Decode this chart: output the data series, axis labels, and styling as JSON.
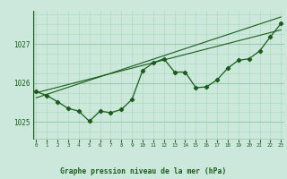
{
  "title": "Graphe pression niveau de la mer (hPa)",
  "bg_color": "#cce8dc",
  "grid_color_major": "#99ccaa",
  "grid_color_minor": "#aaddbb",
  "line_color": "#1a5c1a",
  "x_ticks": [
    0,
    1,
    2,
    3,
    4,
    5,
    6,
    7,
    8,
    9,
    10,
    11,
    12,
    13,
    14,
    15,
    16,
    17,
    18,
    19,
    20,
    21,
    22,
    23
  ],
  "y_ticks": [
    1025,
    1026,
    1027
  ],
  "ylim": [
    1024.55,
    1027.85
  ],
  "xlim": [
    -0.3,
    23.3
  ],
  "main_series": [
    1025.78,
    1025.68,
    1025.52,
    1025.35,
    1025.28,
    1025.02,
    1025.28,
    1025.24,
    1025.32,
    1025.58,
    1026.32,
    1026.52,
    1026.62,
    1026.28,
    1026.28,
    1025.88,
    1025.9,
    1026.08,
    1026.38,
    1026.58,
    1026.62,
    1026.82,
    1027.18,
    1027.52
  ],
  "linear_series_1": [
    1025.75,
    1025.82,
    1025.89,
    1025.96,
    1026.03,
    1026.1,
    1026.17,
    1026.24,
    1026.31,
    1026.38,
    1026.45,
    1026.52,
    1026.59,
    1026.66,
    1026.73,
    1026.8,
    1026.87,
    1026.94,
    1027.01,
    1027.08,
    1027.15,
    1027.22,
    1027.29,
    1027.36
  ],
  "linear_series_2": [
    1025.62,
    1025.71,
    1025.8,
    1025.89,
    1025.98,
    1026.07,
    1026.16,
    1026.25,
    1026.34,
    1026.43,
    1026.52,
    1026.61,
    1026.7,
    1026.79,
    1026.88,
    1026.97,
    1027.06,
    1027.15,
    1027.24,
    1027.33,
    1027.42,
    1027.51,
    1027.6,
    1027.69
  ]
}
